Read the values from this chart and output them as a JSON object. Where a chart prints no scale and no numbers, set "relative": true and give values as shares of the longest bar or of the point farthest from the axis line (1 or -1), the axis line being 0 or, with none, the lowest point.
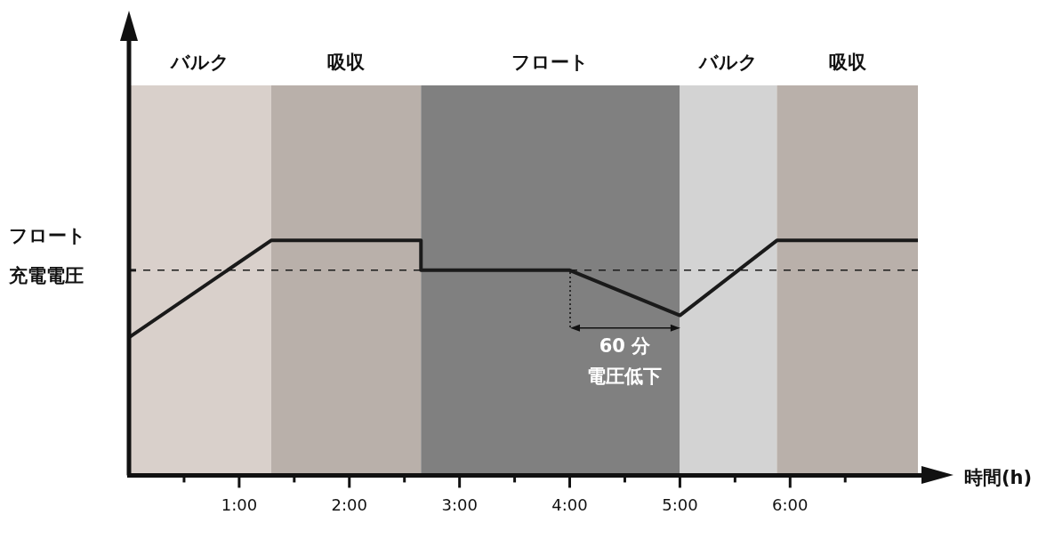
{
  "chart_data": {
    "type": "line",
    "relative": true,
    "xlabel": "時間(h)",
    "x": [
      0,
      1.29,
      2.65,
      2.65,
      4,
      5,
      5.88,
      7.16
    ],
    "series": [
      {
        "color": "#1a1a1a",
        "values": [
          0.587,
          1,
          1,
          0.873,
          0.873,
          0.681,
          1,
          1
        ]
      }
    ],
    "xlim": [
      0,
      7.16
    ],
    "xticks": [
      {
        "value": 0.5,
        "label": null
      },
      {
        "value": 1,
        "label": "1:00"
      },
      {
        "value": 1.5,
        "label": null
      },
      {
        "value": 2,
        "label": "2:00"
      },
      {
        "value": 2.5,
        "label": null
      },
      {
        "value": 3,
        "label": "3:00"
      },
      {
        "value": 3.5,
        "label": null
      },
      {
        "value": 4,
        "label": "4:00"
      },
      {
        "value": 4.5,
        "label": null
      },
      {
        "value": 5,
        "label": "5:00"
      },
      {
        "value": 5.5,
        "label": null
      },
      {
        "value": 6,
        "label": "6:00"
      },
      {
        "value": 6.5,
        "label": null
      }
    ],
    "bands": [
      {
        "axis": "x",
        "from": 0,
        "to": 1.29,
        "label": "バルク",
        "color": "#d9d0cb"
      },
      {
        "axis": "x",
        "from": 1.29,
        "to": 2.65,
        "label": "吸収",
        "color": "#b9b0aa"
      },
      {
        "axis": "x",
        "from": 2.65,
        "to": 5,
        "label": "フロート",
        "color": "#808080"
      },
      {
        "axis": "x",
        "from": 5,
        "to": 5.88,
        "label": "バルク",
        "color": "#d3d3d3"
      },
      {
        "axis": "x",
        "from": 5.88,
        "to": 7.16,
        "label": "吸収",
        "color": "#b9b0aa"
      }
    ],
    "ref_lines": [
      {
        "axis": "y",
        "value": 0.873,
        "label": "フロート充電電圧",
        "color": "#1a1a1a",
        "line_style": "dashed"
      }
    ],
    "annotations": [
      "60 分",
      "電圧低下"
    ],
    "grid": false,
    "legend": false,
    "marker": "none",
    "line_style": "solid"
  }
}
